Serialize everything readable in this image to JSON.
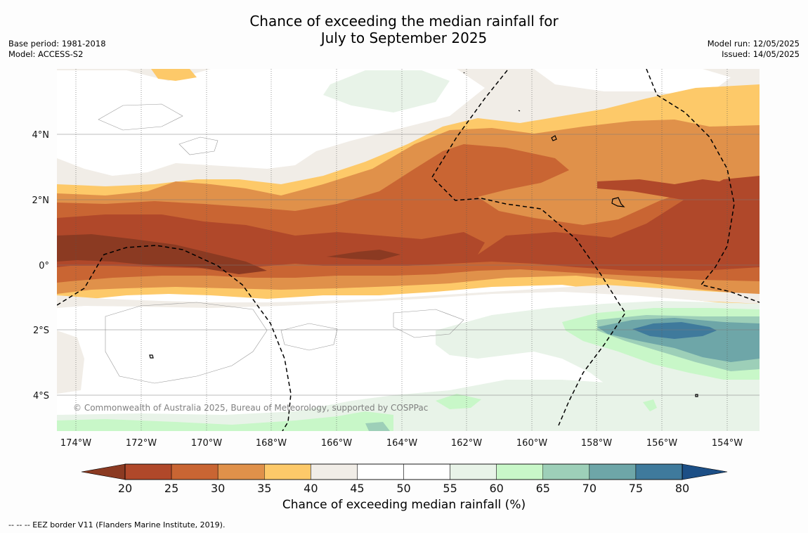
{
  "title": {
    "line1": "Chance of exceeding the median rainfall for",
    "line2": "July to September 2025"
  },
  "meta_left": {
    "base_period": "Base period: 1981-2018",
    "model": "Model: ACCESS-S2"
  },
  "meta_right": {
    "model_run": "Model run: 12/05/2025",
    "issued": "Issued: 14/05/2025"
  },
  "map": {
    "lon_labels": [
      "174°W",
      "172°W",
      "170°W",
      "168°W",
      "166°W",
      "164°W",
      "162°W",
      "160°W",
      "158°W",
      "156°W",
      "154°W"
    ],
    "lat_labels": [
      "4°N",
      "2°N",
      "0°",
      "2°S",
      "4°S"
    ],
    "copyright": "© Commonwealth of Australia 2025, Bureau of Meteorology, supported by COSPPac"
  },
  "colorbar": {
    "ticks": [
      "20",
      "25",
      "30",
      "35",
      "40",
      "45",
      "50",
      "55",
      "60",
      "65",
      "70",
      "75",
      "80"
    ],
    "colors": [
      "#b0482a",
      "#c96533",
      "#e0914a",
      "#fdc969",
      "#f1ede7",
      "#ffffff",
      "#ffffff",
      "#e8f3e8",
      "#c8f7c8",
      "#9dcfb8",
      "#6ea6a8",
      "#3f7a9c"
    ],
    "under_color": "#8b3a22",
    "over_color": "#1c4f86",
    "title": "Chance of exceeding median rainfall (%)"
  },
  "footnote": "--  --  -- EEZ border V11 (Flanders Marine Institute, 2019)."
}
